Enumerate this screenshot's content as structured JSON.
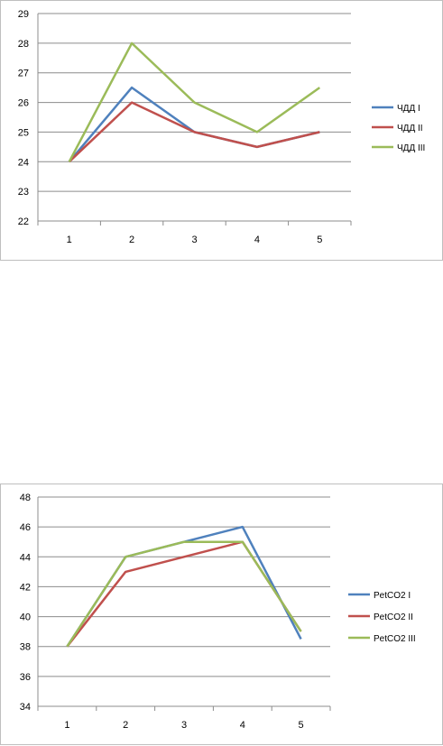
{
  "chart_data": [
    {
      "type": "line",
      "x": [
        1,
        2,
        3,
        4,
        5
      ],
      "ylim": [
        22,
        29
      ],
      "yticks": [
        22,
        23,
        24,
        25,
        26,
        27,
        28,
        29
      ],
      "grid": true,
      "legend_position": "right",
      "series": [
        {
          "name": "ЧДД I",
          "color": "#4f81bd",
          "values": [
            24,
            26.5,
            25,
            24.5,
            25
          ]
        },
        {
          "name": "ЧДД II",
          "color": "#c0504d",
          "values": [
            24,
            26,
            25,
            24.5,
            25
          ]
        },
        {
          "name": "ЧДД III",
          "color": "#9bbb59",
          "values": [
            24,
            28,
            26,
            25,
            26.5
          ]
        }
      ]
    },
    {
      "type": "line",
      "x": [
        1,
        2,
        3,
        4,
        5
      ],
      "ylim": [
        34,
        48
      ],
      "yticks": [
        34,
        36,
        38,
        40,
        42,
        44,
        46,
        48
      ],
      "grid": true,
      "legend_position": "right",
      "series": [
        {
          "name": "PetCO2 I",
          "color": "#4f81bd",
          "values": [
            38,
            44,
            45,
            46,
            38.5
          ]
        },
        {
          "name": "PetCO2 II",
          "color": "#c0504d",
          "values": [
            38,
            43,
            44,
            45,
            39
          ]
        },
        {
          "name": "PetCO2 III",
          "color": "#9bbb59",
          "values": [
            38,
            44,
            45,
            45,
            39
          ]
        }
      ]
    }
  ]
}
